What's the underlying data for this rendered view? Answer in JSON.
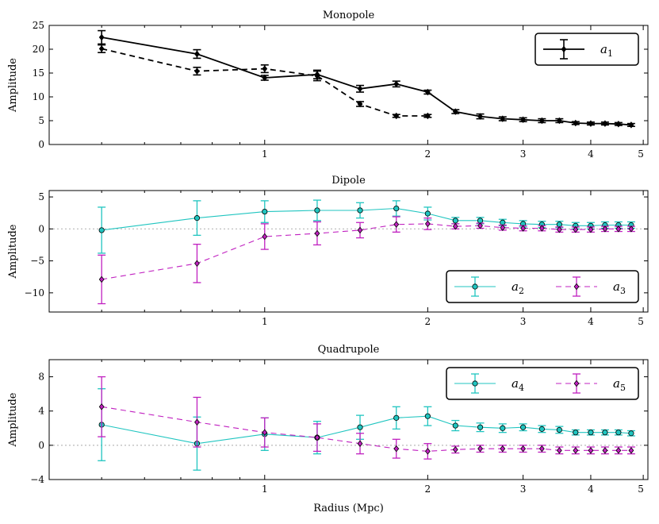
{
  "xlabel": "Radius (Mpc)",
  "chart_data": [
    {
      "type": "line",
      "title": "Monopole",
      "ylabel": "Amplitude",
      "xscale": "log",
      "xlim": [
        0.4,
        5.1
      ],
      "ylim": [
        0,
        25
      ],
      "yticks": [
        0,
        5,
        10,
        15,
        20,
        25
      ],
      "xticks": [
        1,
        2,
        3,
        4,
        5
      ],
      "zero_line": false,
      "legend": {
        "placement": "top-right",
        "entries": [
          {
            "label": "a",
            "sub": "1",
            "series": 0
          }
        ]
      },
      "series": [
        {
          "color": "#000000",
          "dash": "none",
          "marker": "diamond",
          "x": [
            0.5,
            0.75,
            1.0,
            1.25,
            1.5,
            1.75,
            2.0,
            2.25,
            2.5,
            2.75,
            3.0,
            3.25,
            3.5,
            3.75,
            4.0,
            4.25,
            4.5,
            4.75
          ],
          "y": [
            22.5,
            19.0,
            14.0,
            14.7,
            11.7,
            12.7,
            11.0,
            6.9,
            5.9,
            5.4,
            5.2,
            5.0,
            5.0,
            4.5,
            4.4,
            4.4,
            4.3,
            4.1
          ],
          "err": [
            1.4,
            0.9,
            0.5,
            0.9,
            0.7,
            0.6,
            0.4,
            0.4,
            0.5,
            0.4,
            0.4,
            0.4,
            0.4,
            0.3,
            0.3,
            0.3,
            0.3,
            0.3
          ]
        },
        {
          "color": "#000000",
          "dash": "7,5",
          "marker": "diamond",
          "x": [
            0.5,
            0.75,
            1.0,
            1.25,
            1.5,
            1.75,
            2.0
          ],
          "y": [
            20.1,
            15.4,
            15.9,
            14.4,
            8.5,
            6.0,
            6.0
          ],
          "err": [
            0.8,
            0.8,
            0.8,
            1.0,
            0.5,
            0.3,
            0.3
          ]
        }
      ]
    },
    {
      "type": "line",
      "title": "Dipole",
      "ylabel": "Amplitude",
      "xscale": "log",
      "xlim": [
        0.4,
        5.1
      ],
      "ylim": [
        -13,
        6
      ],
      "yticks": [
        -10,
        -5,
        0,
        5
      ],
      "xticks": [
        1,
        2,
        3,
        4,
        5
      ],
      "zero_line": true,
      "legend": {
        "placement": "lower-right",
        "entries": [
          {
            "label": "a",
            "sub": "2",
            "series": 0
          },
          {
            "label": "a",
            "sub": "3",
            "series": 1
          }
        ]
      },
      "series": [
        {
          "color": "#20c5c0",
          "dash": "none",
          "marker": "circle",
          "x": [
            0.5,
            0.75,
            1.0,
            1.25,
            1.5,
            1.75,
            2.0,
            2.25,
            2.5,
            2.75,
            3.0,
            3.25,
            3.5,
            3.75,
            4.0,
            4.25,
            4.5,
            4.75
          ],
          "y": [
            -0.2,
            1.7,
            2.7,
            2.9,
            2.9,
            3.2,
            2.4,
            1.3,
            1.3,
            1.0,
            0.8,
            0.7,
            0.7,
            0.5,
            0.5,
            0.6,
            0.6,
            0.6
          ],
          "err": [
            3.6,
            2.7,
            1.7,
            1.6,
            1.2,
            1.2,
            1.0,
            0.5,
            0.5,
            0.5,
            0.5,
            0.5,
            0.5,
            0.5,
            0.5,
            0.5,
            0.5,
            0.5
          ]
        },
        {
          "color": "#c020c0",
          "dash": "7,5",
          "marker": "diamond",
          "x": [
            0.5,
            0.75,
            1.0,
            1.25,
            1.5,
            1.75,
            2.0,
            2.25,
            2.5,
            2.75,
            3.0,
            3.25,
            3.5,
            3.75,
            4.0,
            4.25,
            4.5,
            4.75
          ],
          "y": [
            -7.9,
            -5.4,
            -1.2,
            -0.7,
            -0.2,
            0.7,
            0.8,
            0.4,
            0.5,
            0.2,
            0.1,
            0.1,
            -0.1,
            -0.1,
            -0.1,
            0.0,
            0.0,
            0.0
          ],
          "err": [
            3.8,
            3.0,
            2.0,
            1.8,
            1.2,
            1.2,
            0.9,
            0.4,
            0.4,
            0.4,
            0.4,
            0.4,
            0.4,
            0.4,
            0.4,
            0.4,
            0.4,
            0.4
          ]
        }
      ]
    },
    {
      "type": "line",
      "title": "Quadrupole",
      "ylabel": "Amplitude",
      "xscale": "log",
      "xlim": [
        0.4,
        5.1
      ],
      "ylim": [
        -4,
        10
      ],
      "yticks": [
        -4,
        0,
        4,
        8
      ],
      "xticks": [
        1,
        2,
        3,
        4,
        5
      ],
      "zero_line": true,
      "legend": {
        "placement": "top-right",
        "entries": [
          {
            "label": "a",
            "sub": "4",
            "series": 0
          },
          {
            "label": "a",
            "sub": "5",
            "series": 1
          }
        ]
      },
      "series": [
        {
          "color": "#20c5c0",
          "dash": "none",
          "marker": "circle",
          "x": [
            0.5,
            0.75,
            1.0,
            1.25,
            1.5,
            1.75,
            2.0,
            2.25,
            2.5,
            2.75,
            3.0,
            3.25,
            3.5,
            3.75,
            4.0,
            4.25,
            4.5,
            4.75
          ],
          "y": [
            2.4,
            0.2,
            1.3,
            0.9,
            2.1,
            3.2,
            3.4,
            2.3,
            2.1,
            2.0,
            2.1,
            1.9,
            1.8,
            1.5,
            1.5,
            1.5,
            1.5,
            1.4
          ],
          "err": [
            4.2,
            3.1,
            1.9,
            1.9,
            1.4,
            1.3,
            1.1,
            0.6,
            0.5,
            0.5,
            0.4,
            0.4,
            0.4,
            0.3,
            0.3,
            0.3,
            0.3,
            0.3
          ]
        },
        {
          "color": "#c020c0",
          "dash": "7,5",
          "marker": "diamond",
          "x": [
            0.5,
            0.75,
            1.0,
            1.25,
            1.5,
            1.75,
            2.0,
            2.25,
            2.5,
            2.75,
            3.0,
            3.25,
            3.5,
            3.75,
            4.0,
            4.25,
            4.5,
            4.75
          ],
          "y": [
            4.5,
            2.7,
            1.5,
            0.9,
            0.2,
            -0.4,
            -0.7,
            -0.5,
            -0.4,
            -0.4,
            -0.4,
            -0.4,
            -0.6,
            -0.6,
            -0.6,
            -0.6,
            -0.6,
            -0.6
          ],
          "err": [
            3.5,
            2.9,
            1.7,
            1.6,
            1.2,
            1.1,
            0.9,
            0.4,
            0.4,
            0.4,
            0.4,
            0.4,
            0.4,
            0.4,
            0.4,
            0.4,
            0.4,
            0.4
          ]
        }
      ]
    }
  ]
}
